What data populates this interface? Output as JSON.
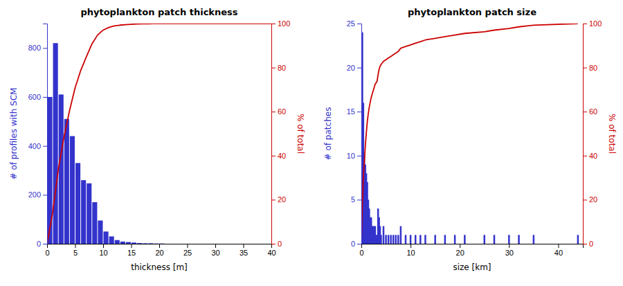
{
  "chart_data": [
    {
      "type": "bar",
      "title": "phytoplankton patch thickness",
      "xlabel": "thickness [m]",
      "ylabel": "# of profiles with SCM",
      "y2label": "% of total",
      "bins": [
        0,
        1,
        2,
        3,
        4,
        5,
        6,
        7,
        8,
        9,
        10,
        11,
        12,
        13,
        14,
        15,
        16,
        17,
        18,
        19,
        20,
        21,
        22,
        23,
        24,
        25,
        26,
        27,
        28,
        29,
        30,
        31,
        32,
        33,
        34,
        35,
        36,
        37,
        38,
        39,
        40
      ],
      "series": [
        {
          "type": "bar",
          "color": "#3333cc",
          "values": [
            600,
            820,
            610,
            510,
            440,
            330,
            260,
            247,
            170,
            95,
            50,
            30,
            15,
            9,
            7,
            5,
            3,
            2,
            2,
            1,
            1,
            0,
            0,
            0,
            0,
            0,
            0,
            0,
            0,
            0,
            0,
            0,
            0,
            0,
            0,
            0,
            0,
            0,
            0,
            0
          ]
        },
        {
          "type": "line",
          "axis": "y2",
          "color": "#cc0000",
          "x": [
            0,
            1,
            2,
            3,
            4,
            5,
            6,
            7,
            8,
            9,
            10,
            11,
            12,
            13,
            14,
            15,
            16,
            17,
            18,
            19,
            20,
            21,
            22,
            23,
            24,
            25,
            26,
            27,
            28,
            29,
            30,
            31,
            32,
            33,
            34,
            35,
            36,
            37,
            38,
            39,
            40
          ],
          "values": [
            0,
            14.262,
            33.753,
            48.253,
            60.376,
            70.834,
            78.678,
            84.859,
            90.73,
            94.771,
            97.029,
            98.217,
            98.93,
            99.287,
            99.501,
            99.667,
            99.786,
            99.857,
            99.905,
            99.952,
            99.976,
            100,
            100,
            100,
            100,
            100,
            100,
            100,
            100,
            100,
            100,
            100,
            100,
            100,
            100,
            100,
            100,
            100,
            100,
            100,
            100
          ]
        }
      ],
      "xlim": [
        0,
        40
      ],
      "xticks": [
        0,
        5,
        10,
        15,
        20,
        25,
        30,
        35,
        40
      ],
      "ylim": [
        0,
        900
      ],
      "yticks": [
        0,
        200,
        400,
        600,
        800
      ],
      "y2lim": [
        0,
        100
      ],
      "y2ticks": [
        0,
        20,
        40,
        60,
        80,
        100
      ],
      "grid": false
    },
    {
      "type": "bar",
      "title": "phytoplankton patch size",
      "xlabel": "size [km]",
      "ylabel": "# of patches",
      "y2label": "% of total",
      "series": [
        {
          "type": "bar",
          "color": "#3333cc",
          "x": [
            0.2,
            0.4,
            0.6,
            0.8,
            1.0,
            1.2,
            1.4,
            1.6,
            1.8,
            2.0,
            2.2,
            2.4,
            2.6,
            2.8,
            3.0,
            3.2,
            3.4,
            3.6,
            3.8,
            4.0,
            4.5,
            5.0,
            5.5,
            6.0,
            6.5,
            7.0,
            7.5,
            8.0,
            9.0,
            10.0,
            11.0,
            12.0,
            13.0,
            15.0,
            17.0,
            19.0,
            21.0,
            25.0,
            27.0,
            30.0,
            32.0,
            35.0,
            44.0
          ],
          "values": [
            24,
            16,
            10,
            9,
            8,
            7,
            5,
            4,
            3,
            3,
            2,
            2,
            2,
            2,
            1,
            1,
            4,
            3,
            2,
            1,
            2,
            1,
            1,
            1,
            1,
            1,
            1,
            2,
            1,
            1,
            1,
            1,
            1,
            1,
            1,
            1,
            1,
            1,
            1,
            1,
            1,
            1,
            1
          ]
        },
        {
          "type": "line",
          "axis": "y2",
          "color": "#cc0000",
          "x": [
            0,
            0.2,
            0.4,
            0.6,
            0.8,
            1.0,
            1.2,
            1.4,
            1.6,
            1.8,
            2.0,
            2.2,
            2.4,
            2.6,
            2.8,
            3.0,
            3.2,
            3.4,
            3.6,
            3.8,
            4.0,
            4.5,
            5.0,
            5.5,
            6.0,
            6.5,
            7.0,
            7.5,
            8.0,
            9.0,
            10.0,
            11.0,
            12.0,
            13.0,
            15.0,
            17.0,
            19.0,
            21.0,
            25.0,
            27.0,
            30.0,
            32.0,
            35.0,
            44.0
          ],
          "values": [
            0,
            17.91,
            29.851,
            37.313,
            44.03,
            50,
            55.224,
            58.955,
            61.94,
            64.179,
            66.418,
            67.91,
            69.403,
            70.896,
            72.388,
            73.134,
            73.881,
            76.866,
            79.104,
            80.597,
            81.343,
            82.836,
            83.582,
            84.328,
            85.075,
            85.821,
            86.567,
            87.313,
            88.806,
            89.552,
            90.299,
            91.045,
            91.791,
            92.537,
            93.284,
            94.03,
            94.776,
            95.522,
            96.269,
            97.015,
            97.761,
            98.507,
            99.254,
            100
          ]
        }
      ],
      "xlim": [
        0,
        45
      ],
      "xticks": [
        0,
        10,
        20,
        30,
        40
      ],
      "ylim": [
        0,
        25
      ],
      "yticks": [
        0,
        5,
        10,
        15,
        20,
        25
      ],
      "y2lim": [
        0,
        100
      ],
      "y2ticks": [
        0,
        20,
        40,
        60,
        80,
        100
      ],
      "grid": false
    }
  ]
}
